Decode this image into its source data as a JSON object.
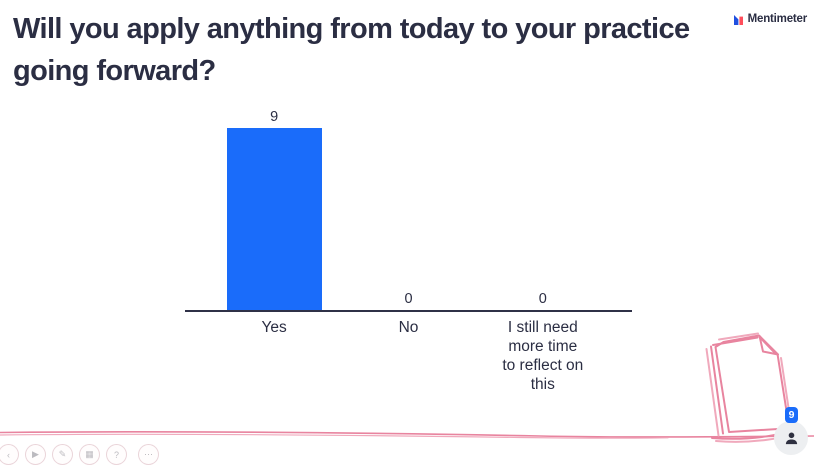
{
  "page": {
    "title": "Will you apply anything from today to your practice going forward?",
    "title_lines": [
      "Will you apply anything from today to your practice",
      "going forward?"
    ]
  },
  "brand": {
    "name": "Mentimeter",
    "logo_icon": "mentimeter-bars-icon"
  },
  "chart_data": {
    "type": "bar",
    "title": "Will you apply anything from today to your practice going forward?",
    "categories": [
      "Yes",
      "No",
      "I still need more time to reflect on this"
    ],
    "categories_wrapped": [
      [
        "Yes"
      ],
      [
        "No"
      ],
      [
        "I still need",
        "more time",
        "to reflect on",
        "this"
      ]
    ],
    "values": [
      9,
      0,
      0
    ],
    "ylim": [
      0,
      9
    ],
    "xlabel": "",
    "ylabel": "",
    "grid": false,
    "legend": false,
    "bar_color": "#1A6CFA",
    "axis_color": "#2F3147",
    "label_color": "#2B2E43"
  },
  "participants": {
    "count": 9,
    "person_icon": "person-icon"
  },
  "decoration": {
    "pink_doodle": "hand-drawn-paper-doodle",
    "pink_line_color": "#E8849F"
  },
  "footer_toolbar": {
    "icons": [
      "back-icon",
      "play-icon",
      "pencil-icon",
      "image-icon",
      "help-icon",
      "more-icon"
    ],
    "glyphs": [
      "‹",
      "▶",
      "✎",
      "▦",
      "?",
      "⋯"
    ]
  },
  "colors": {
    "accent_blue": "#1A6CFA",
    "pink": "#E8849F",
    "text_dark": "#2B2E43"
  }
}
